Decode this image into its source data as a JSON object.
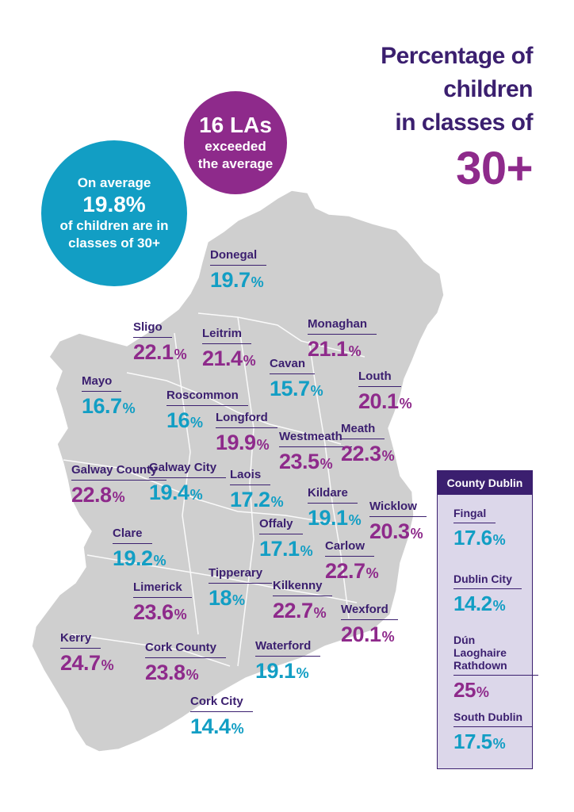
{
  "title": {
    "line1": "Percentage of",
    "line2": "children",
    "line3": "in classes of",
    "big": "30+"
  },
  "bubble_avg": {
    "line1": "On average",
    "value": "19.8%",
    "line2": "of children are in",
    "line3": "classes of 30+"
  },
  "bubble_las": {
    "value": "16 LAs",
    "line1": "exceeded",
    "line2": "the average"
  },
  "colors": {
    "above_average": "#8e2a8b",
    "below_average": "#129ec4",
    "navy": "#3b1f6f",
    "land": "#cfcfcf"
  },
  "counties": [
    {
      "name": "Donegal",
      "value": "19.7",
      "color": "blue"
    },
    {
      "name": "Sligo",
      "value": "22.1",
      "color": "purple"
    },
    {
      "name": "Leitrim",
      "value": "21.4",
      "color": "purple"
    },
    {
      "name": "Monaghan",
      "value": "21.1",
      "color": "purple"
    },
    {
      "name": "Cavan",
      "value": "15.7",
      "color": "blue"
    },
    {
      "name": "Louth",
      "value": "20.1",
      "color": "purple"
    },
    {
      "name": "Mayo",
      "value": "16.7",
      "color": "blue"
    },
    {
      "name": "Roscommon",
      "value": "16",
      "color": "blue"
    },
    {
      "name": "Longford",
      "value": "19.9",
      "color": "purple"
    },
    {
      "name": "Westmeath",
      "value": "23.5",
      "color": "purple"
    },
    {
      "name": "Meath",
      "value": "22.3",
      "color": "purple"
    },
    {
      "name": "Galway County",
      "value": "22.8",
      "color": "purple"
    },
    {
      "name": "Galway City",
      "value": "19.4",
      "color": "blue"
    },
    {
      "name": "Laois",
      "value": "17.2",
      "color": "blue"
    },
    {
      "name": "Kildare",
      "value": "19.1",
      "color": "blue"
    },
    {
      "name": "Wicklow",
      "value": "20.3",
      "color": "purple"
    },
    {
      "name": "Clare",
      "value": "19.2",
      "color": "blue"
    },
    {
      "name": "Offaly",
      "value": "17.1",
      "color": "blue"
    },
    {
      "name": "Carlow",
      "value": "22.7",
      "color": "purple"
    },
    {
      "name": "Tipperary",
      "value": "18",
      "color": "blue"
    },
    {
      "name": "Limerick",
      "value": "23.6",
      "color": "purple"
    },
    {
      "name": "Kilkenny",
      "value": "22.7",
      "color": "purple"
    },
    {
      "name": "Wexford",
      "value": "20.1",
      "color": "purple"
    },
    {
      "name": "Kerry",
      "value": "24.7",
      "color": "purple"
    },
    {
      "name": "Cork County",
      "value": "23.8",
      "color": "purple"
    },
    {
      "name": "Waterford",
      "value": "19.1",
      "color": "blue"
    },
    {
      "name": "Cork City",
      "value": "14.4",
      "color": "blue"
    }
  ],
  "dublin_panel": {
    "heading": "County Dublin",
    "counties": [
      {
        "name": "Fingal",
        "value": "17.6",
        "color": "blue"
      },
      {
        "name": "Dublin City",
        "value": "14.2",
        "color": "blue"
      },
      {
        "name": "Dún Laoghaire Rathdown",
        "value": "25",
        "color": "purple"
      },
      {
        "name": "South Dublin",
        "value": "17.5",
        "color": "blue"
      }
    ]
  },
  "pct_sign": "%"
}
